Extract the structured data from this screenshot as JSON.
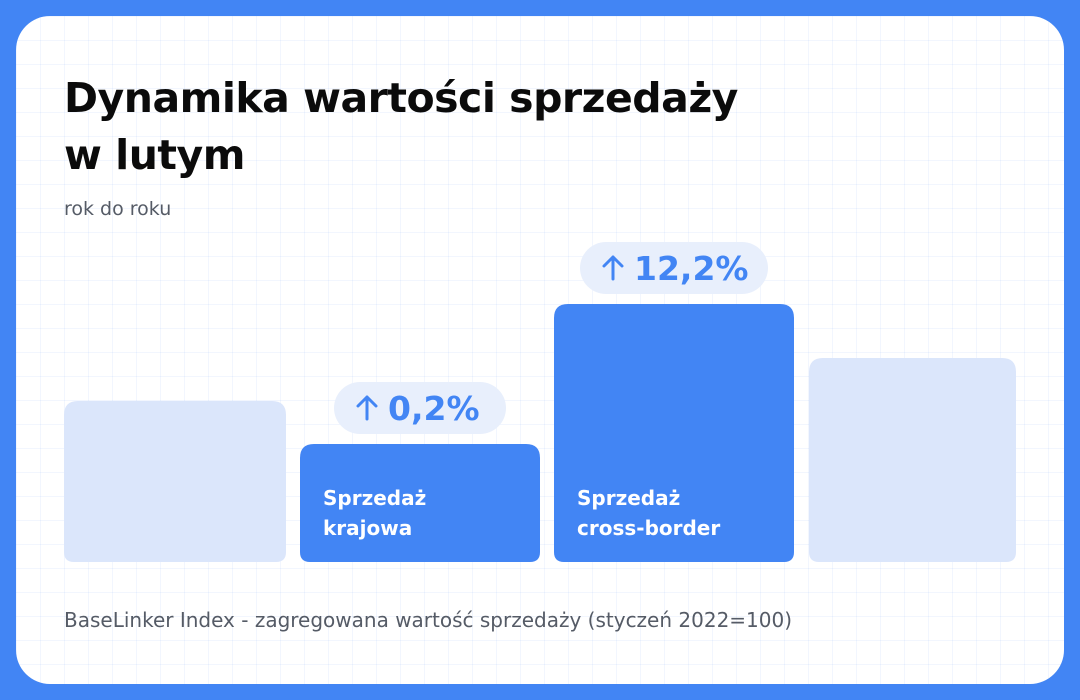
{
  "title_line1": "Dynamika wartości sprzedaży",
  "title_line2": "w lutym",
  "subtitle": "rok do roku",
  "footnote": "BaseLinker Index - zagregowana wartość sprzedaży (styczeń 2022=100)",
  "colors": {
    "background": "#4285f4",
    "bar_active": "#4285f4",
    "bar_muted": "#dbe6fb",
    "badge_bg": "#e8effc",
    "badge_text": "#4285f4",
    "bar_label": "#ffffff"
  },
  "icons": {
    "change_arrow": "arrow-up-icon"
  },
  "chart_data": {
    "type": "bar",
    "title": "Dynamika wartości sprzedaży w lutym",
    "subtitle": "rok do roku",
    "ylim": [
      0,
      130
    ],
    "categories": [
      "",
      "Sprzedaż krajowa",
      "Sprzedaż cross-border",
      ""
    ],
    "bars": [
      {
        "label_lines": [],
        "value": 80.5,
        "muted": true,
        "change": ""
      },
      {
        "label_lines": [
          "Sprzedaż",
          "krajowa"
        ],
        "value": 59,
        "muted": false,
        "change": "0,2%"
      },
      {
        "label_lines": [
          "Sprzedaż",
          "cross-border"
        ],
        "value": 129,
        "muted": false,
        "change": "12,2%"
      },
      {
        "label_lines": [],
        "value": 102,
        "muted": true,
        "change": ""
      }
    ],
    "grid": false,
    "legend": "none"
  }
}
